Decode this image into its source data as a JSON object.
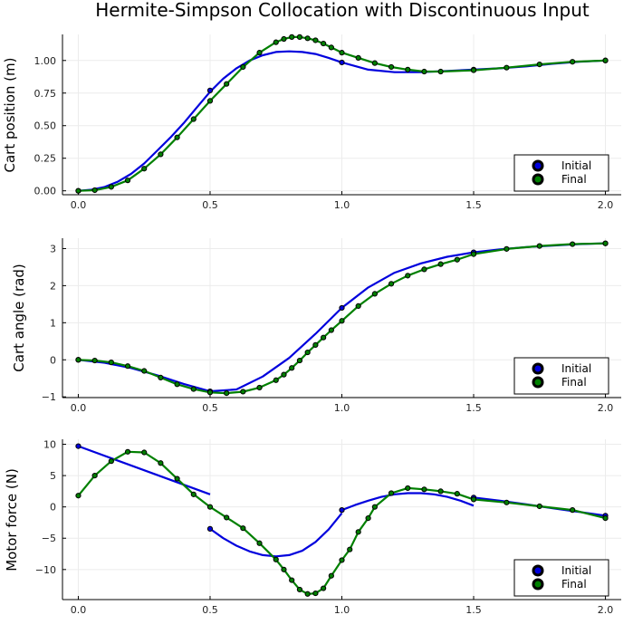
{
  "title": "Hermite-Simpson Collocation with Discontinuous Input",
  "colors": {
    "initial": "#0000dd",
    "final": "#008000",
    "marker_edge": "#000000",
    "grid": "#ececec",
    "axis": "#000000"
  },
  "chart_data": [
    {
      "type": "line",
      "ylabel": "Cart position (m)",
      "xlim": [
        -0.06,
        2.06
      ],
      "ylim": [
        -0.03,
        1.2
      ],
      "xticks": [
        0,
        0.5,
        1,
        1.5,
        2
      ],
      "xtick_labels": [
        "0.0",
        "0.5",
        "1.0",
        "1.5",
        "2.0"
      ],
      "yticks": [
        0,
        0.25,
        0.5,
        0.75,
        1
      ],
      "ytick_labels": [
        "0.00",
        "0.25",
        "0.50",
        "0.75",
        "1.00"
      ],
      "grid": true,
      "legend": {
        "position": "bottom-right",
        "entries": [
          "Initial",
          "Final"
        ]
      },
      "series": [
        {
          "name": "Initial",
          "style": "line",
          "points": [
            [
              0,
              0
            ],
            [
              0.05,
              0.008
            ],
            [
              0.1,
              0.03
            ],
            [
              0.15,
              0.07
            ],
            [
              0.2,
              0.13
            ],
            [
              0.25,
              0.21
            ],
            [
              0.3,
              0.31
            ],
            [
              0.35,
              0.41
            ],
            [
              0.4,
              0.52
            ],
            [
              0.45,
              0.64
            ],
            [
              0.5,
              0.76
            ],
            [
              0.55,
              0.86
            ],
            [
              0.6,
              0.94
            ],
            [
              0.65,
              1.0
            ],
            [
              0.7,
              1.04
            ],
            [
              0.75,
              1.065
            ],
            [
              0.8,
              1.07
            ],
            [
              0.85,
              1.065
            ],
            [
              0.9,
              1.05
            ],
            [
              0.95,
              1.02
            ],
            [
              1.0,
              0.985
            ],
            [
              1.1,
              0.93
            ],
            [
              1.2,
              0.91
            ],
            [
              1.3,
              0.91
            ],
            [
              1.4,
              0.92
            ],
            [
              1.5,
              0.93
            ],
            [
              1.6,
              0.94
            ],
            [
              1.7,
              0.955
            ],
            [
              1.8,
              0.975
            ],
            [
              1.9,
              0.99
            ],
            [
              2.0,
              1.0
            ]
          ],
          "markers": [
            [
              0,
              0
            ],
            [
              0.5,
              0.77
            ],
            [
              1.0,
              0.985
            ],
            [
              1.5,
              0.93
            ],
            [
              2.0,
              1.0
            ]
          ]
        },
        {
          "name": "Final",
          "style": "line+markers",
          "points": [
            [
              0,
              0
            ],
            [
              0.0625,
              0.005
            ],
            [
              0.125,
              0.03
            ],
            [
              0.1875,
              0.08
            ],
            [
              0.25,
              0.17
            ],
            [
              0.3125,
              0.28
            ],
            [
              0.375,
              0.41
            ],
            [
              0.4375,
              0.55
            ],
            [
              0.5,
              0.69
            ],
            [
              0.5625,
              0.82
            ],
            [
              0.625,
              0.95
            ],
            [
              0.6875,
              1.06
            ],
            [
              0.75,
              1.14
            ],
            [
              0.78,
              1.165
            ],
            [
              0.81,
              1.18
            ],
            [
              0.84,
              1.18
            ],
            [
              0.87,
              1.17
            ],
            [
              0.9,
              1.155
            ],
            [
              0.93,
              1.13
            ],
            [
              0.96,
              1.1
            ],
            [
              1.0,
              1.06
            ],
            [
              1.0625,
              1.02
            ],
            [
              1.125,
              0.98
            ],
            [
              1.1875,
              0.95
            ],
            [
              1.25,
              0.93
            ],
            [
              1.3125,
              0.915
            ],
            [
              1.375,
              0.915
            ],
            [
              1.5,
              0.925
            ],
            [
              1.625,
              0.945
            ],
            [
              1.75,
              0.97
            ],
            [
              1.875,
              0.99
            ],
            [
              2.0,
              1.0
            ]
          ]
        }
      ]
    },
    {
      "type": "line",
      "ylabel": "Cart angle (rad)",
      "xlim": [
        -0.06,
        2.06
      ],
      "ylim": [
        -1.02,
        3.28
      ],
      "xticks": [
        0,
        0.5,
        1,
        1.5,
        2
      ],
      "xtick_labels": [
        "0.0",
        "0.5",
        "1.0",
        "1.5",
        "2.0"
      ],
      "yticks": [
        -1,
        0,
        1,
        2,
        3
      ],
      "ytick_labels": [
        "−1",
        "0",
        "1",
        "2",
        "3"
      ],
      "grid": true,
      "legend": {
        "position": "bottom-right",
        "entries": [
          "Initial",
          "Final"
        ]
      },
      "series": [
        {
          "name": "Initial",
          "style": "line",
          "points": [
            [
              0,
              0
            ],
            [
              0.1,
              -0.08
            ],
            [
              0.2,
              -0.22
            ],
            [
              0.3,
              -0.42
            ],
            [
              0.4,
              -0.65
            ],
            [
              0.5,
              -0.85
            ],
            [
              0.6,
              -0.8
            ],
            [
              0.7,
              -0.45
            ],
            [
              0.8,
              0.05
            ],
            [
              0.9,
              0.7
            ],
            [
              1.0,
              1.4
            ],
            [
              1.1,
              1.95
            ],
            [
              1.2,
              2.35
            ],
            [
              1.3,
              2.6
            ],
            [
              1.4,
              2.78
            ],
            [
              1.5,
              2.9
            ],
            [
              1.6,
              2.98
            ],
            [
              1.7,
              3.04
            ],
            [
              1.8,
              3.08
            ],
            [
              1.9,
              3.12
            ],
            [
              2.0,
              3.14
            ]
          ],
          "markers": [
            [
              0,
              0
            ],
            [
              0.5,
              -0.85
            ],
            [
              1.0,
              1.4
            ],
            [
              1.5,
              2.9
            ],
            [
              2.0,
              3.14
            ]
          ]
        },
        {
          "name": "Final",
          "style": "line+markers",
          "points": [
            [
              0,
              0
            ],
            [
              0.0625,
              -0.02
            ],
            [
              0.125,
              -0.07
            ],
            [
              0.1875,
              -0.17
            ],
            [
              0.25,
              -0.3
            ],
            [
              0.3125,
              -0.48
            ],
            [
              0.375,
              -0.66
            ],
            [
              0.4375,
              -0.79
            ],
            [
              0.5,
              -0.88
            ],
            [
              0.5625,
              -0.9
            ],
            [
              0.625,
              -0.86
            ],
            [
              0.6875,
              -0.75
            ],
            [
              0.75,
              -0.55
            ],
            [
              0.78,
              -0.4
            ],
            [
              0.81,
              -0.22
            ],
            [
              0.84,
              -0.02
            ],
            [
              0.87,
              0.2
            ],
            [
              0.9,
              0.4
            ],
            [
              0.93,
              0.6
            ],
            [
              0.96,
              0.8
            ],
            [
              1.0,
              1.05
            ],
            [
              1.0625,
              1.45
            ],
            [
              1.125,
              1.78
            ],
            [
              1.1875,
              2.05
            ],
            [
              1.25,
              2.27
            ],
            [
              1.3125,
              2.44
            ],
            [
              1.375,
              2.58
            ],
            [
              1.4375,
              2.7
            ],
            [
              1.5,
              2.85
            ],
            [
              1.625,
              2.99
            ],
            [
              1.75,
              3.07
            ],
            [
              1.875,
              3.12
            ],
            [
              2.0,
              3.14
            ]
          ]
        }
      ]
    },
    {
      "type": "line",
      "ylabel": "Motor force (N)",
      "xlim": [
        -0.06,
        2.06
      ],
      "ylim": [
        -14.8,
        10.8
      ],
      "xticks": [
        0,
        0.5,
        1,
        1.5,
        2
      ],
      "xtick_labels": [
        "0.0",
        "0.5",
        "1.0",
        "1.5",
        "2.0"
      ],
      "yticks": [
        -10,
        -5,
        0,
        5,
        10
      ],
      "ytick_labels": [
        "−10",
        "−5",
        "0",
        "5",
        "10"
      ],
      "grid": true,
      "legend": {
        "position": "bottom-right",
        "entries": [
          "Initial",
          "Final"
        ]
      },
      "series": [
        {
          "name": "Initial",
          "style": "line",
          "segments": [
            [
              [
                0,
                9.7
              ],
              [
                0.5,
                2.0
              ]
            ],
            [
              [
                0.5,
                -3.5
              ],
              [
                0.55,
                -5.0
              ],
              [
                0.6,
                -6.2
              ],
              [
                0.65,
                -7.1
              ],
              [
                0.7,
                -7.7
              ],
              [
                0.75,
                -7.9
              ],
              [
                0.8,
                -7.7
              ],
              [
                0.85,
                -7.0
              ],
              [
                0.9,
                -5.6
              ],
              [
                0.95,
                -3.6
              ],
              [
                1.0,
                -1.0
              ]
            ],
            [
              [
                1.0,
                -0.5
              ],
              [
                1.05,
                0.3
              ],
              [
                1.1,
                1.0
              ],
              [
                1.15,
                1.6
              ],
              [
                1.2,
                2.0
              ],
              [
                1.25,
                2.2
              ],
              [
                1.3,
                2.2
              ],
              [
                1.35,
                2.0
              ],
              [
                1.4,
                1.6
              ],
              [
                1.45,
                1.0
              ],
              [
                1.5,
                0.2
              ]
            ],
            [
              [
                1.5,
                1.5
              ],
              [
                1.6,
                1.0
              ],
              [
                1.7,
                0.4
              ],
              [
                1.8,
                -0.2
              ],
              [
                1.9,
                -0.8
              ],
              [
                2.0,
                -1.4
              ]
            ]
          ],
          "markers": [
            [
              0,
              9.7
            ],
            [
              0.5,
              -3.5
            ],
            [
              1.0,
              -0.5
            ],
            [
              1.5,
              1.5
            ],
            [
              2.0,
              -1.4
            ]
          ]
        },
        {
          "name": "Final",
          "style": "line+markers",
          "points": [
            [
              0,
              1.8
            ],
            [
              0.0625,
              5.0
            ],
            [
              0.125,
              7.3
            ],
            [
              0.1875,
              8.8
            ],
            [
              0.25,
              8.7
            ],
            [
              0.3125,
              7.0
            ],
            [
              0.375,
              4.5
            ],
            [
              0.4375,
              2.0
            ],
            [
              0.5,
              0.0
            ],
            [
              0.5625,
              -1.7
            ],
            [
              0.625,
              -3.4
            ],
            [
              0.6875,
              -5.8
            ],
            [
              0.75,
              -8.4
            ],
            [
              0.78,
              -10.0
            ],
            [
              0.81,
              -11.7
            ],
            [
              0.84,
              -13.2
            ],
            [
              0.87,
              -13.9
            ],
            [
              0.9,
              -13.8
            ],
            [
              0.93,
              -13.0
            ],
            [
              0.96,
              -11.0
            ],
            [
              1.0,
              -8.5
            ],
            [
              1.03,
              -6.8
            ],
            [
              1.0625,
              -4.0
            ],
            [
              1.1,
              -1.8
            ],
            [
              1.125,
              0.0
            ],
            [
              1.1875,
              2.2
            ],
            [
              1.25,
              3.0
            ],
            [
              1.3125,
              2.8
            ],
            [
              1.375,
              2.5
            ],
            [
              1.4375,
              2.1
            ],
            [
              1.5,
              1.2
            ],
            [
              1.625,
              0.7
            ],
            [
              1.75,
              0.1
            ],
            [
              1.875,
              -0.5
            ],
            [
              2.0,
              -1.8
            ]
          ]
        }
      ]
    }
  ]
}
